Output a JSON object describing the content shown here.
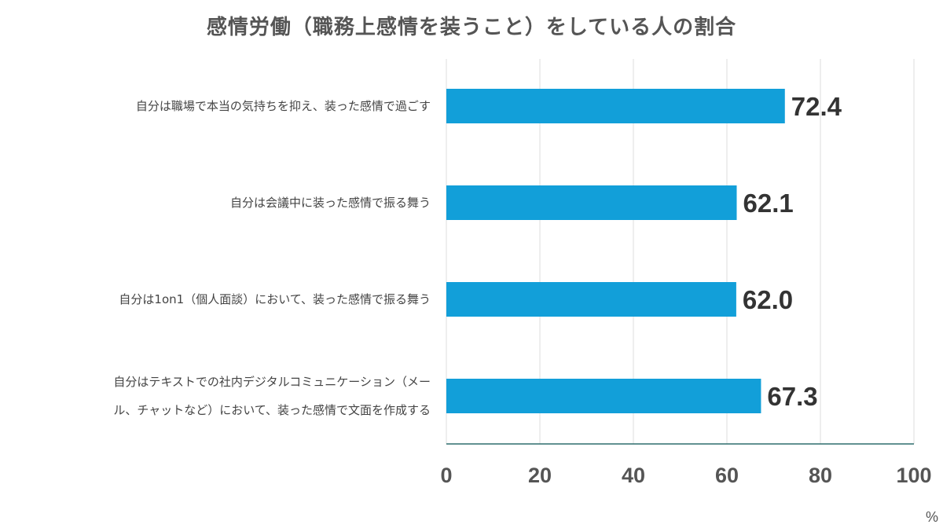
{
  "chart_data": {
    "type": "bar",
    "orientation": "horizontal",
    "title": "感情労働（職務上感情を装うこと）をしている人の割合",
    "categories": [
      [
        "自分は職場で本当の気持ちを抑え、装った感情で過ごす"
      ],
      [
        "自分は会議中に装った感情で振る舞う"
      ],
      [
        "自分は1on1（個人面談）において、装った感情で振る舞う"
      ],
      [
        "自分はテキストでの社内デジタルコミュニケーション（メー",
        "ル、チャットなど）において、装った感情で文面を作成する"
      ]
    ],
    "values": [
      72.4,
      62.1,
      62.0,
      67.3
    ],
    "value_labels": [
      "72.4",
      "62.1",
      "62.0",
      "67.3"
    ],
    "xlim": [
      0,
      100
    ],
    "xticks": [
      0,
      20,
      40,
      60,
      80,
      100
    ],
    "xtick_labels": [
      "0",
      "20",
      "40",
      "60",
      "80",
      "100"
    ],
    "unit": "%",
    "grid": "vertical",
    "bar_color": "#129fd9",
    "axis_color": "#2f6d6d",
    "grid_color": "#dcdcdc"
  }
}
